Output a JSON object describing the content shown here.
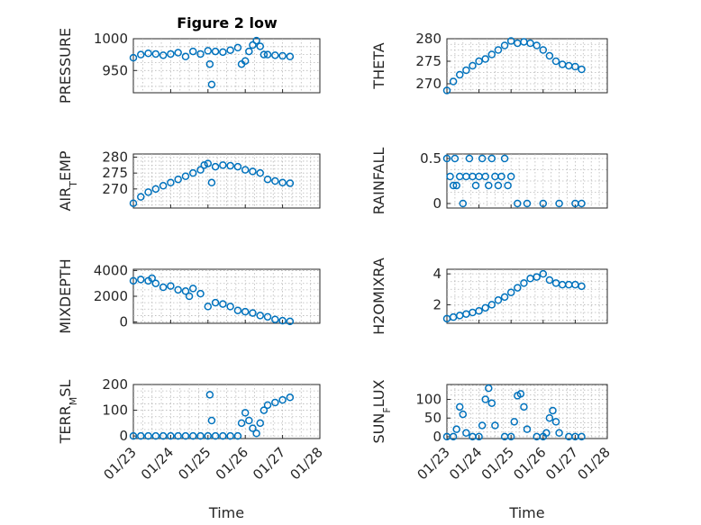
{
  "figure": {
    "title": "Figure 2 low",
    "marker_color": "#0072BD",
    "x_tick_labels": [
      "01/23",
      "01/24",
      "01/25",
      "01/26",
      "01/27",
      "01/28"
    ],
    "x_label": "Time"
  },
  "chart_data": [
    {
      "type": "scatter",
      "ylabel": "PRESSURE",
      "xlim": [
        "01/23",
        "01/28"
      ],
      "ylim": [
        915,
        1000
      ],
      "yticks": [
        950,
        1000
      ],
      "grid": true,
      "x_axis_label": "",
      "x_tick_labels_visible": false,
      "series": [
        {
          "x": [
            23.0,
            23.2,
            23.4,
            23.6,
            23.8,
            24.0,
            24.2,
            24.4,
            24.6,
            24.8,
            25.0,
            25.05,
            25.1,
            25.2,
            25.4,
            25.6,
            25.8,
            25.9,
            26.0,
            26.1,
            26.2,
            26.3,
            26.4,
            26.5,
            26.6,
            26.8,
            27.0,
            27.2
          ],
          "y": [
            970,
            975,
            977,
            976,
            974,
            976,
            978,
            972,
            980,
            976,
            981,
            960,
            928,
            980,
            979,
            982,
            986,
            960,
            965,
            980,
            990,
            997,
            988,
            975,
            975,
            974,
            973,
            972
          ]
        }
      ]
    },
    {
      "type": "scatter",
      "ylabel": "THETA",
      "xlim": [
        "01/23",
        "01/28"
      ],
      "ylim": [
        268,
        280
      ],
      "yticks": [
        270,
        275,
        280
      ],
      "grid": true,
      "x_axis_label": "",
      "x_tick_labels_visible": false,
      "series": [
        {
          "x": [
            23.0,
            23.2,
            23.4,
            23.6,
            23.8,
            24.0,
            24.2,
            24.4,
            24.6,
            24.8,
            25.0,
            25.2,
            25.4,
            25.6,
            25.8,
            26.0,
            26.2,
            26.4,
            26.6,
            26.8,
            27.0,
            27.2
          ],
          "y": [
            268.5,
            270.5,
            272,
            273,
            274,
            275,
            275.5,
            276.5,
            277.5,
            278.5,
            279.5,
            279,
            279.3,
            279,
            278.5,
            277.5,
            276.2,
            275,
            274.3,
            274,
            273.8,
            273.2
          ]
        }
      ]
    },
    {
      "type": "scatter",
      "ylabel": "AIRTEMP",
      "xlim": [
        "01/23",
        "01/28"
      ],
      "ylim": [
        264,
        281
      ],
      "yticks": [
        270,
        275,
        280
      ],
      "grid": true,
      "x_axis_label": "",
      "x_tick_labels_visible": false,
      "series": [
        {
          "x": [
            23.0,
            23.2,
            23.4,
            23.6,
            23.8,
            24.0,
            24.2,
            24.4,
            24.6,
            24.8,
            24.9,
            25.0,
            25.1,
            25.2,
            25.4,
            25.6,
            25.8,
            26.0,
            26.2,
            26.4,
            26.6,
            26.8,
            27.0,
            27.2
          ],
          "y": [
            265.5,
            267.5,
            269,
            270,
            271,
            272,
            273,
            274,
            275,
            276,
            277.5,
            278,
            272,
            277,
            277.5,
            277.3,
            277,
            276,
            275.5,
            275,
            273,
            272.5,
            272,
            271.8
          ]
        }
      ]
    },
    {
      "type": "scatter",
      "ylabel": "RAINFALL",
      "xlim": [
        "01/23",
        "01/28"
      ],
      "ylim": [
        -0.05,
        0.55
      ],
      "yticks": [
        0,
        0.5
      ],
      "grid": true,
      "x_axis_label": "",
      "x_tick_labels_visible": false,
      "series": [
        {
          "x": [
            23.0,
            23.1,
            23.2,
            23.25,
            23.3,
            23.4,
            23.5,
            23.6,
            23.7,
            23.8,
            23.9,
            24.0,
            24.1,
            24.2,
            24.3,
            24.4,
            24.5,
            24.6,
            24.7,
            24.8,
            24.9,
            25.0,
            25.2,
            25.5,
            26.0,
            26.5,
            27.0,
            27.2
          ],
          "y": [
            0.5,
            0.3,
            0.2,
            0.5,
            0.2,
            0.3,
            0.0,
            0.3,
            0.5,
            0.3,
            0.2,
            0.3,
            0.5,
            0.3,
            0.2,
            0.5,
            0.3,
            0.2,
            0.3,
            0.5,
            0.2,
            0.3,
            0.0,
            0.0,
            0.0,
            0.0,
            0.0,
            0.0
          ]
        }
      ]
    },
    {
      "type": "scatter",
      "ylabel": "MIXDEPTH",
      "xlim": [
        "01/23",
        "01/28"
      ],
      "ylim": [
        -100,
        4100
      ],
      "yticks": [
        0,
        2000,
        4000
      ],
      "grid": true,
      "x_axis_label": "",
      "x_tick_labels_visible": false,
      "series": [
        {
          "x": [
            23.0,
            23.2,
            23.4,
            23.5,
            23.6,
            23.8,
            24.0,
            24.2,
            24.4,
            24.5,
            24.6,
            24.8,
            25.0,
            25.2,
            25.4,
            25.6,
            25.8,
            26.0,
            26.2,
            26.4,
            26.6,
            26.8,
            27.0,
            27.2
          ],
          "y": [
            3200,
            3300,
            3200,
            3400,
            3000,
            2700,
            2800,
            2500,
            2400,
            2000,
            2600,
            2200,
            1200,
            1500,
            1400,
            1200,
            900,
            800,
            700,
            500,
            400,
            200,
            100,
            50
          ]
        }
      ]
    },
    {
      "type": "scatter",
      "ylabel": "H2OMIXRA",
      "xlim": [
        "01/23",
        "01/28"
      ],
      "ylim": [
        0.8,
        4.3
      ],
      "yticks": [
        2,
        4
      ],
      "grid": true,
      "x_axis_label": "",
      "x_tick_labels_visible": false,
      "series": [
        {
          "x": [
            23.0,
            23.2,
            23.4,
            23.6,
            23.8,
            24.0,
            24.2,
            24.4,
            24.6,
            24.8,
            25.0,
            25.2,
            25.4,
            25.6,
            25.8,
            26.0,
            26.2,
            26.4,
            26.6,
            26.8,
            27.0,
            27.2
          ],
          "y": [
            1.1,
            1.2,
            1.3,
            1.4,
            1.5,
            1.6,
            1.8,
            2.0,
            2.3,
            2.5,
            2.8,
            3.1,
            3.4,
            3.7,
            3.8,
            4.0,
            3.6,
            3.4,
            3.3,
            3.3,
            3.3,
            3.2
          ]
        }
      ]
    },
    {
      "type": "scatter",
      "ylabel": "TERRMSL",
      "xlim": [
        "01/23",
        "01/28"
      ],
      "ylim": [
        -10,
        200
      ],
      "yticks": [
        0,
        100,
        200
      ],
      "grid": true,
      "x_axis_label": "Time",
      "x_tick_labels_visible": true,
      "series": [
        {
          "x": [
            23.0,
            23.2,
            23.4,
            23.6,
            23.8,
            24.0,
            24.2,
            24.4,
            24.6,
            24.8,
            25.0,
            25.05,
            25.1,
            25.2,
            25.4,
            25.6,
            25.8,
            25.9,
            26.0,
            26.1,
            26.2,
            26.3,
            26.4,
            26.5,
            26.6,
            26.8,
            27.0,
            27.2
          ],
          "y": [
            0,
            0,
            0,
            0,
            0,
            0,
            0,
            0,
            0,
            0,
            0,
            160,
            60,
            0,
            0,
            0,
            0,
            50,
            90,
            60,
            30,
            10,
            50,
            100,
            120,
            130,
            140,
            150
          ]
        }
      ]
    },
    {
      "type": "scatter",
      "ylabel": "SUNFLUX",
      "xlim": [
        "01/23",
        "01/28"
      ],
      "ylim": [
        -5,
        140
      ],
      "yticks": [
        0,
        50,
        100
      ],
      "grid": true,
      "x_axis_label": "Time",
      "x_tick_labels_visible": true,
      "series": [
        {
          "x": [
            23.0,
            23.2,
            23.3,
            23.4,
            23.5,
            23.6,
            23.8,
            24.0,
            24.1,
            24.2,
            24.3,
            24.4,
            24.5,
            24.8,
            25.0,
            25.1,
            25.2,
            25.3,
            25.4,
            25.5,
            25.8,
            26.0,
            26.1,
            26.2,
            26.3,
            26.4,
            26.5,
            26.8,
            27.0,
            27.2
          ],
          "y": [
            0,
            0,
            20,
            80,
            60,
            10,
            0,
            0,
            30,
            100,
            130,
            90,
            30,
            0,
            0,
            40,
            110,
            115,
            80,
            20,
            0,
            0,
            10,
            50,
            70,
            40,
            10,
            0,
            0,
            0
          ]
        }
      ]
    }
  ]
}
